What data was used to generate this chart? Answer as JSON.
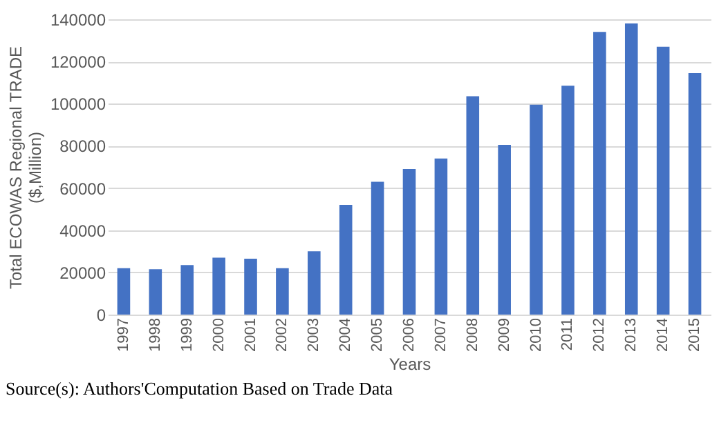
{
  "chart_data": {
    "type": "bar",
    "xlabel": "Years",
    "ylabel": "Total ECOWAS Regional TRADE ($,Million)",
    "categories": [
      "1997",
      "1998",
      "1999",
      "2000",
      "2001",
      "2002",
      "2003",
      "2004",
      "2005",
      "2006",
      "2007",
      "2008",
      "2009",
      "2010",
      "2011",
      "2012",
      "2013",
      "2014",
      "2015"
    ],
    "values": [
      22000,
      21500,
      23500,
      27000,
      26500,
      22000,
      30000,
      52000,
      63000,
      69000,
      74000,
      103500,
      80500,
      99500,
      108500,
      134000,
      138000,
      127000,
      114500
    ],
    "color": "#4472c4",
    "ylim": [
      0,
      140000
    ],
    "yticks": [
      0,
      20000,
      40000,
      60000,
      80000,
      100000,
      120000,
      140000
    ],
    "grid": "y",
    "annotations": [
      "Source(s): Authors'Computation Based on Trade Data"
    ]
  }
}
